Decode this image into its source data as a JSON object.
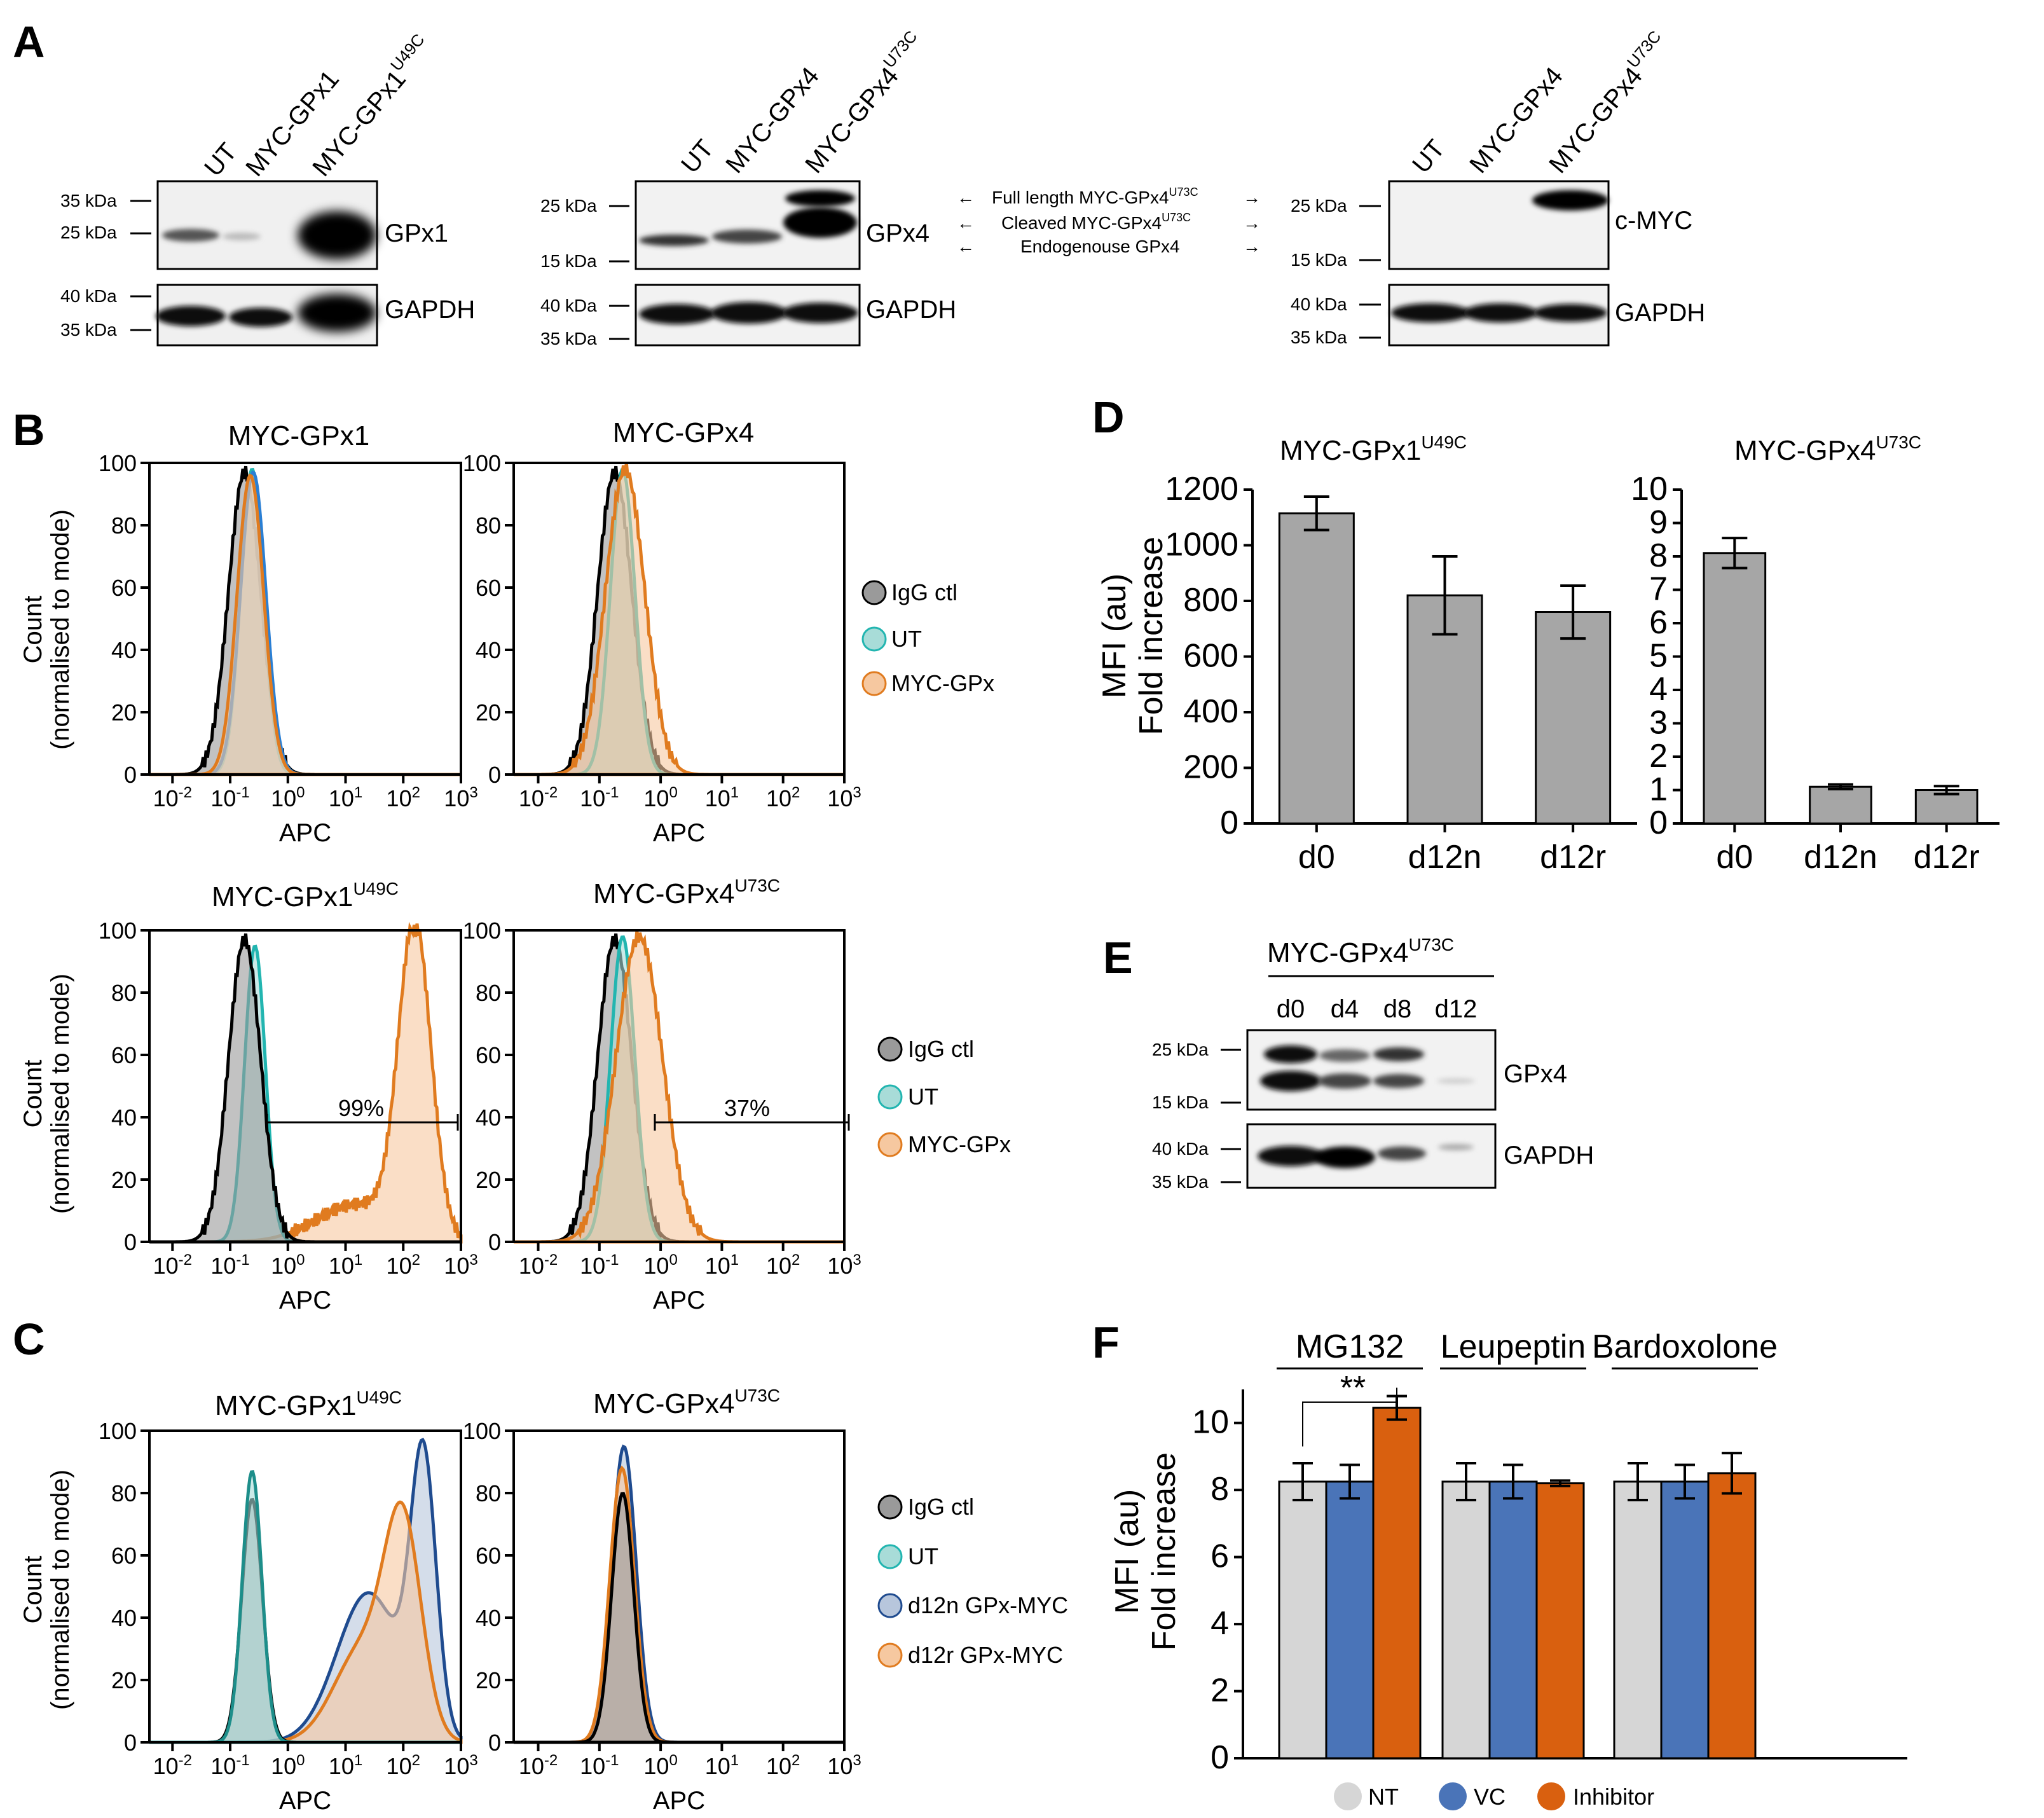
{
  "colors": {
    "igg": "#000000",
    "igg_fill": "#9a9a9a",
    "ut": "#22b5b0",
    "ut_fill": "#a8dcd8",
    "myc": "#e07b1f",
    "myc_fill": "#f6c8a0",
    "d12n": "#1f4b8f",
    "d12n_fill": "#b7c6dc",
    "gray_bar": "#a6a6a6",
    "nt": "#d6d6d6",
    "vc": "#4a74b8",
    "inh": "#d9600f"
  },
  "panelA": {
    "letter": "A",
    "blot1": {
      "lanes": [
        "UT",
        "MYC-GPx1",
        "MYC-GPx1"
      ],
      "lane3_sup": "U49C",
      "top_label": "GPx1",
      "bottom_label": "GAPDH",
      "kda_top": [
        "35 kDa",
        "25 kDa"
      ],
      "kda_bottom": [
        "40 kDa",
        "35 kDa"
      ]
    },
    "blot2": {
      "lanes": [
        "UT",
        "MYC-GPx4",
        "MYC-GPx4"
      ],
      "lane3_sup": "U73C",
      "top_label": "GPx4",
      "bottom_label": "GAPDH",
      "kda_top": [
        "25 kDa",
        "15 kDa"
      ],
      "kda_bottom": [
        "40 kDa",
        "35 kDa"
      ]
    },
    "arrows": {
      "full": "Full length MYC-GPx4",
      "full_sup": "U73C",
      "cleaved": "Cleaved MYC-GPx4",
      "cleaved_sup": "U73C",
      "endo": "Endogenouse GPx4"
    },
    "blot3": {
      "lanes": [
        "UT",
        "MYC-GPx4",
        "MYC-GPx4"
      ],
      "lane3_sup": "U73C",
      "top_label": "c-MYC",
      "bottom_label": "GAPDH",
      "kda_top": [
        "25 kDa",
        "15 kDa"
      ],
      "kda_bottom": [
        "40 kDa",
        "35 kDa"
      ]
    }
  },
  "panelB": {
    "letter": "B",
    "plots": [
      {
        "title": "MYC-GPx1",
        "sup": ""
      },
      {
        "title": "MYC-GPx4",
        "sup": ""
      },
      {
        "title": "MYC-GPx1",
        "sup": "U49C",
        "gate": "99%"
      },
      {
        "title": "MYC-GPx4",
        "sup": "U73C",
        "gate": "37%"
      }
    ],
    "legend": [
      "IgG ctl",
      "UT",
      "MYC-GPx"
    ],
    "xlabel": "APC",
    "ylabel1": "Count",
    "ylabel2": "(normalised to mode)"
  },
  "panelC": {
    "letter": "C",
    "plots": [
      {
        "title": "MYC-GPx1",
        "sup": "U49C"
      },
      {
        "title": "MYC-GPx4",
        "sup": "U73C"
      }
    ],
    "legend": [
      "IgG ctl",
      "UT",
      "d12n GPx-MYC",
      "d12r GPx-MYC"
    ]
  },
  "flow_axes": {
    "y_ticks": [
      "0",
      "20",
      "40",
      "60",
      "80",
      "100"
    ],
    "x_ticks": [
      {
        "base": "10",
        "exp": "-2"
      },
      {
        "base": "10",
        "exp": "-1"
      },
      {
        "base": "10",
        "exp": "0"
      },
      {
        "base": "10",
        "exp": "1"
      },
      {
        "base": "10",
        "exp": "2"
      },
      {
        "base": "10",
        "exp": "3"
      }
    ]
  },
  "panelE": {
    "letter": "E",
    "header": "MYC-GPx4",
    "header_sup": "U73C",
    "lanes": [
      "d0",
      "d4",
      "d8",
      "d12"
    ],
    "top_label": "GPx4",
    "bottom_label": "GAPDH",
    "kda_top": [
      "25 kDa",
      "15 kDa"
    ],
    "kda_bottom": [
      "40 kDa",
      "35 kDa"
    ]
  },
  "chart_data": [
    {
      "panel": "D",
      "type": "bar",
      "title": "MYC-GPx1",
      "title_sup": "U49C",
      "categories": [
        "d0",
        "d12n",
        "d12r"
      ],
      "values": [
        1115,
        820,
        760
      ],
      "errors": [
        60,
        140,
        95
      ],
      "ylim": [
        0,
        1200
      ],
      "yticks": [
        "0",
        "200",
        "400",
        "600",
        "800",
        "1000",
        "1200"
      ],
      "ylabel": "MFI (au)",
      "ylabel2": "Fold increase"
    },
    {
      "panel": "D",
      "type": "bar",
      "title": "MYC-GPx4",
      "title_sup": "U73C",
      "categories": [
        "d0",
        "d12n",
        "d12r"
      ],
      "values": [
        8.1,
        1.1,
        1.0
      ],
      "errors": [
        0.45,
        0.07,
        0.12
      ],
      "ylim": [
        0,
        10
      ],
      "yticks": [
        "0",
        "1",
        "2",
        "3",
        "4",
        "5",
        "6",
        "7",
        "8",
        "9",
        "10"
      ]
    },
    {
      "panel": "F",
      "type": "bar",
      "groups": [
        "MG132",
        "Leupeptin",
        "Bardoxolone"
      ],
      "series": [
        {
          "name": "NT",
          "values": [
            8.25,
            8.25,
            8.25
          ],
          "errors": [
            0.55,
            0.55,
            0.55
          ]
        },
        {
          "name": "VC",
          "values": [
            8.25,
            8.25,
            8.25
          ],
          "errors": [
            0.5,
            0.5,
            0.5
          ]
        },
        {
          "name": "Inhibitor",
          "values": [
            10.45,
            8.2,
            8.5
          ],
          "errors": [
            0.35,
            0.08,
            0.6
          ]
        }
      ],
      "significance": "**",
      "ylim": [
        0,
        11
      ],
      "yticks": [
        "0",
        "2",
        "4",
        "6",
        "8",
        "10"
      ],
      "ylabel": "MFI (au)",
      "ylabel2": "Fold increase"
    }
  ]
}
